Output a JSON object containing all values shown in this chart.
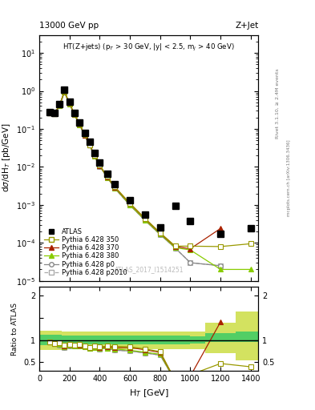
{
  "title_left": "13000 GeV pp",
  "title_right": "Z+Jet",
  "inner_title": "HT(Z+jets) (p$_T$ > 30 GeV, |y| < 2.5, m$_j$ > 40 GeV)",
  "watermark": "ATLAS_2017_I1514251",
  "right_label1": "Rivet 3.1.10, ≥ 2.4M events",
  "right_label2": "mcplots.cern.ch [arXiv:1306.3436]",
  "atlas_x": [
    66,
    100,
    133,
    166,
    200,
    233,
    266,
    300,
    333,
    366,
    400,
    450,
    500,
    600,
    700,
    800,
    900,
    1000,
    1200,
    1400
  ],
  "atlas_y": [
    0.28,
    0.27,
    0.45,
    1.1,
    0.52,
    0.27,
    0.15,
    0.08,
    0.046,
    0.023,
    0.013,
    0.0065,
    0.0035,
    0.0013,
    0.00055,
    0.00025,
    0.00095,
    0.00038,
    0.00017,
    0.00024
  ],
  "py350_x": [
    66,
    100,
    133,
    166,
    200,
    233,
    266,
    300,
    333,
    366,
    400,
    450,
    500,
    600,
    700,
    800,
    900,
    1000,
    1200,
    1400
  ],
  "py350_y": [
    0.27,
    0.25,
    0.42,
    0.97,
    0.47,
    0.24,
    0.135,
    0.07,
    0.038,
    0.02,
    0.011,
    0.0056,
    0.003,
    0.0011,
    0.00044,
    0.000185,
    8.2e-05,
    8.2e-05,
    8e-05,
    9.5e-05
  ],
  "py370_x": [
    66,
    100,
    133,
    166,
    200,
    233,
    266,
    300,
    333,
    366,
    400,
    450,
    500,
    600,
    700,
    800,
    900,
    1000,
    1200
  ],
  "py370_y": [
    0.27,
    0.25,
    0.42,
    0.96,
    0.47,
    0.24,
    0.134,
    0.069,
    0.038,
    0.02,
    0.0108,
    0.0055,
    0.0029,
    0.00108,
    0.00043,
    0.00018,
    8e-05,
    7e-05,
    0.00024
  ],
  "py380_x": [
    66,
    100,
    133,
    166,
    200,
    233,
    266,
    300,
    333,
    366,
    400,
    450,
    500,
    600,
    700,
    800,
    900,
    1000,
    1200,
    1400
  ],
  "py380_y": [
    0.27,
    0.25,
    0.41,
    0.94,
    0.46,
    0.235,
    0.13,
    0.068,
    0.037,
    0.019,
    0.0105,
    0.0053,
    0.0028,
    0.001,
    0.0004,
    0.00017,
    7.5e-05,
    6.5e-05,
    2e-05,
    2e-05
  ],
  "pyp0_x": [
    66,
    100,
    133,
    166,
    200,
    233,
    266,
    300,
    333,
    366,
    400,
    450,
    500,
    600,
    700,
    800,
    900,
    1000,
    1200
  ],
  "pyp0_y": [
    0.27,
    0.25,
    0.4,
    0.92,
    0.45,
    0.235,
    0.13,
    0.068,
    0.037,
    0.019,
    0.0104,
    0.0053,
    0.0027,
    0.00098,
    0.00039,
    0.000165,
    7.3e-05,
    3e-05,
    2.5e-05
  ],
  "pyp2010_x": [
    66,
    100,
    133,
    166,
    200,
    233,
    266,
    300,
    333,
    366,
    400,
    450,
    500,
    600,
    700,
    800,
    900,
    1000,
    1200
  ],
  "pyp2010_y": [
    0.27,
    0.25,
    0.4,
    0.92,
    0.45,
    0.235,
    0.13,
    0.068,
    0.037,
    0.019,
    0.0104,
    0.0053,
    0.0027,
    0.00098,
    0.00039,
    0.000165,
    7.3e-05,
    3e-05,
    2.5e-05
  ],
  "band_edges": [
    0,
    100,
    150,
    200,
    250,
    300,
    350,
    400,
    500,
    600,
    700,
    800,
    900,
    1000,
    1100,
    1300,
    1450
  ],
  "band_inner_lo": [
    0.88,
    0.88,
    0.9,
    0.9,
    0.9,
    0.9,
    0.9,
    0.9,
    0.9,
    0.9,
    0.9,
    0.9,
    0.9,
    0.92,
    0.95,
    0.95,
    0.95
  ],
  "band_inner_hi": [
    1.12,
    1.12,
    1.1,
    1.1,
    1.1,
    1.1,
    1.1,
    1.1,
    1.1,
    1.1,
    1.1,
    1.1,
    1.1,
    1.08,
    1.15,
    1.2,
    1.25
  ],
  "band_outer_lo": [
    0.78,
    0.78,
    0.8,
    0.8,
    0.8,
    0.8,
    0.8,
    0.8,
    0.8,
    0.8,
    0.8,
    0.8,
    0.8,
    0.8,
    0.7,
    0.55,
    0.4
  ],
  "band_outer_hi": [
    1.22,
    1.22,
    1.2,
    1.2,
    1.2,
    1.2,
    1.2,
    1.2,
    1.2,
    1.2,
    1.2,
    1.2,
    1.2,
    1.2,
    1.4,
    1.65,
    1.9
  ],
  "color_350": "#999900",
  "color_370": "#aa2200",
  "color_380": "#88cc00",
  "color_p0": "#888888",
  "color_p2010": "#aaaaaa",
  "band_inner_color": "#44cc66",
  "band_outer_color": "#ccdd44",
  "xlim": [
    0,
    1450
  ],
  "ylim_main": [
    1e-05,
    30
  ],
  "ratio_ymin": 0.3,
  "ratio_ymax": 2.2
}
